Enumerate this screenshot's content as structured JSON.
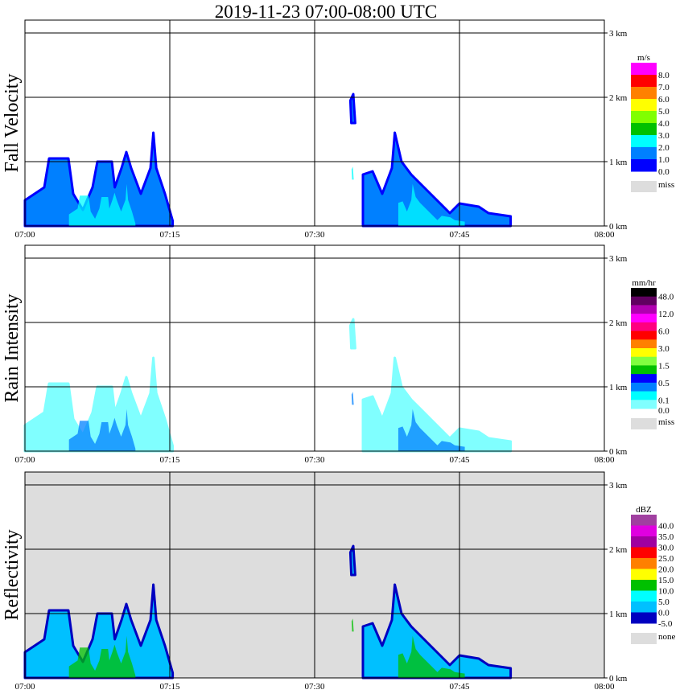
{
  "chart_data": [
    {
      "type": "heatmap",
      "title": "2019-11-23   07:00-08:00 UTC",
      "panels": [
        {
          "ylabel": "Fall Velocity",
          "units": "m/s",
          "legend_labels": [
            "8.0",
            "7.0",
            "6.0",
            "5.0",
            "4.0",
            "3.0",
            "2.0",
            "1.0",
            "0.0"
          ],
          "legend_colors": [
            "#ff00ff",
            "#ff0000",
            "#ff8000",
            "#ffff00",
            "#80ff00",
            "#00c000",
            "#00ffff",
            "#0080ff",
            "#0000ff"
          ],
          "missing_label": "miss",
          "missing_color": "#dddddd",
          "background": "#ffffff",
          "edge_color": "#0000ff",
          "fill_color": "#0080ff",
          "core_color": "#00ffff"
        },
        {
          "ylabel": "Rain Intensity",
          "units": "mm/hr",
          "legend_labels": [
            "48.0",
            "12.0",
            "6.0",
            "3.0",
            "1.5",
            "0.5",
            "0.1",
            "0.0"
          ],
          "legend_colors": [
            "#000000",
            "#600060",
            "#b000b0",
            "#ff00ff",
            "#ff0080",
            "#ff0000",
            "#ff8000",
            "#ffff00",
            "#80ff40",
            "#00c000",
            "#0000ff",
            "#0080ff",
            "#00ffff",
            "#80ffff"
          ],
          "missing_label": "miss",
          "missing_color": "#dddddd",
          "background": "#ffffff",
          "edge_color": "#80ffff",
          "fill_color": "#80ffff",
          "core_color": "#0080ff"
        },
        {
          "ylabel": "Reflectivity",
          "units": "dBZ",
          "legend_labels": [
            "40.0",
            "35.0",
            "30.0",
            "25.0",
            "20.0",
            "15.0",
            "10.0",
            "5.0",
            "0.0",
            "-5.0"
          ],
          "legend_colors": [
            "#a040a0",
            "#e000e0",
            "#a000a0",
            "#ff0000",
            "#ff8000",
            "#ffff00",
            "#00c000",
            "#00ffff",
            "#00c0ff",
            "#0000c0"
          ],
          "missing_label": "none",
          "missing_color": "#dddddd",
          "background": "#dddddd",
          "edge_color": "#0000c0",
          "fill_color": "#00c0ff",
          "core_color": "#00c000"
        }
      ],
      "x_ticks": [
        "07:00",
        "07:15",
        "07:30",
        "07:45",
        "08:00"
      ],
      "x_range_minutes": [
        0,
        60
      ],
      "y_ticks": [
        "0 km",
        "1 km",
        "2 km",
        "3 km"
      ],
      "y_range_km": [
        0,
        3.2
      ],
      "grid": true,
      "echoes": [
        [
          [
            0,
            0
          ],
          [
            0,
            0.4
          ],
          [
            1,
            0.5
          ],
          [
            2,
            0.6
          ],
          [
            2.5,
            1.05
          ],
          [
            4.5,
            1.05
          ],
          [
            5,
            0.5
          ],
          [
            6,
            0.25
          ],
          [
            7,
            0.6
          ],
          [
            7.5,
            1.0
          ],
          [
            9,
            1.0
          ],
          [
            9.3,
            0.6
          ],
          [
            10,
            0.9
          ],
          [
            10.5,
            1.15
          ],
          [
            11,
            0.9
          ],
          [
            12,
            0.5
          ],
          [
            13,
            0.9
          ],
          [
            13.3,
            1.45
          ],
          [
            13.6,
            0.9
          ],
          [
            14.5,
            0.5
          ],
          [
            15.3,
            0.08
          ],
          [
            15.3,
            0
          ]
        ],
        [
          [
            35,
            0
          ],
          [
            35,
            0.8
          ],
          [
            36,
            0.85
          ],
          [
            37,
            0.5
          ],
          [
            38,
            0.9
          ],
          [
            38.3,
            1.45
          ],
          [
            39,
            1.0
          ],
          [
            40,
            0.8
          ],
          [
            42,
            0.5
          ],
          [
            44,
            0.2
          ],
          [
            45,
            0.35
          ],
          [
            47,
            0.3
          ],
          [
            48,
            0.2
          ],
          [
            50.3,
            0.15
          ],
          [
            50.3,
            0
          ]
        ],
        [
          [
            33.8,
            1.6
          ],
          [
            33.7,
            1.95
          ],
          [
            34,
            2.05
          ],
          [
            34.2,
            1.6
          ]
        ]
      ]
    }
  ]
}
